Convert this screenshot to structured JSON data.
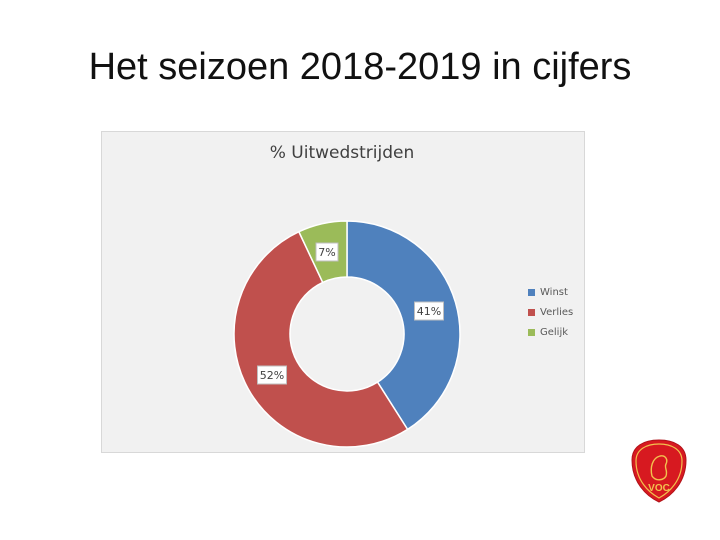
{
  "slide": {
    "title": "Het seizoen 2018-2019 in cijfers"
  },
  "chart_data": {
    "type": "pie",
    "donut": true,
    "title": "% Uitwedstrijden",
    "categories": [
      "Winst",
      "Verlies",
      "Gelijk"
    ],
    "values": [
      41,
      52,
      7
    ],
    "data_labels": [
      "41%",
      "52%",
      "7%"
    ],
    "colors": [
      "#4f81bd",
      "#c0504d",
      "#9bbb59"
    ],
    "legend": "right"
  },
  "logo": {
    "text": "VOC",
    "color": "#d71920"
  }
}
